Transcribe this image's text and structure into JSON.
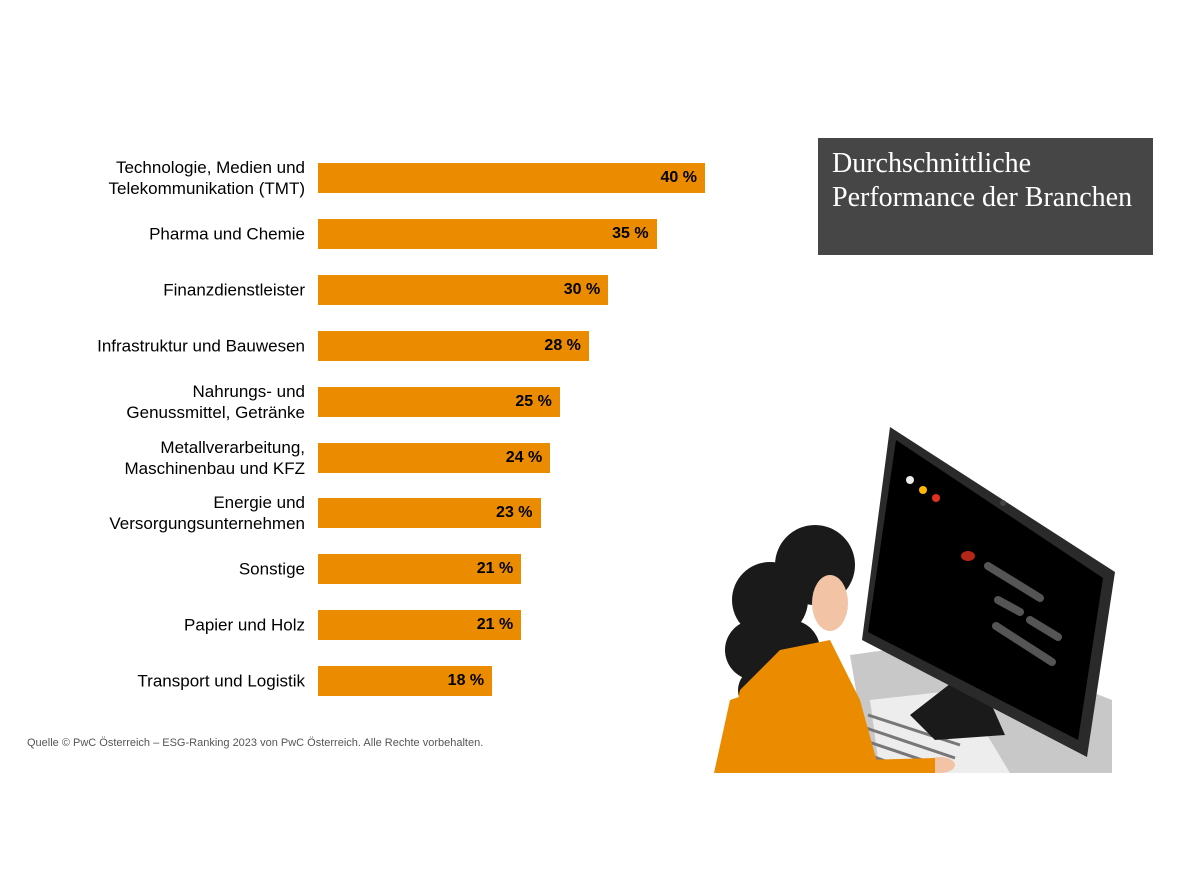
{
  "chart_data": {
    "type": "bar",
    "orientation": "horizontal",
    "title": "Durchschnittliche Performance der Branchen",
    "categories": [
      "Technologie, Medien und\nTelekommunikation (TMT)",
      "Pharma und Chemie",
      "Finanzdienstleister",
      "Infrastruktur und Bauwesen",
      "Nahrungs- und\nGenussmittel, Getränke",
      "Metallverarbeitung,\nMaschinenbau und KFZ",
      "Energie und\nVersorgungsunternehmen",
      "Sonstige",
      "Papier und Holz",
      "Transport und Logistik"
    ],
    "values": [
      40,
      35,
      30,
      28,
      25,
      24,
      23,
      21,
      21,
      18
    ],
    "value_labels": [
      "40 %",
      "35 %",
      "30 %",
      "28 %",
      "25 %",
      "24 %",
      "23 %",
      "21 %",
      "21 %",
      "18 %"
    ],
    "color": "#eb8c00",
    "source": "Quelle © PwC Österreich – ESG-Ranking 2023 von PwC Österreich. Alle Rechte vorbehalten."
  }
}
